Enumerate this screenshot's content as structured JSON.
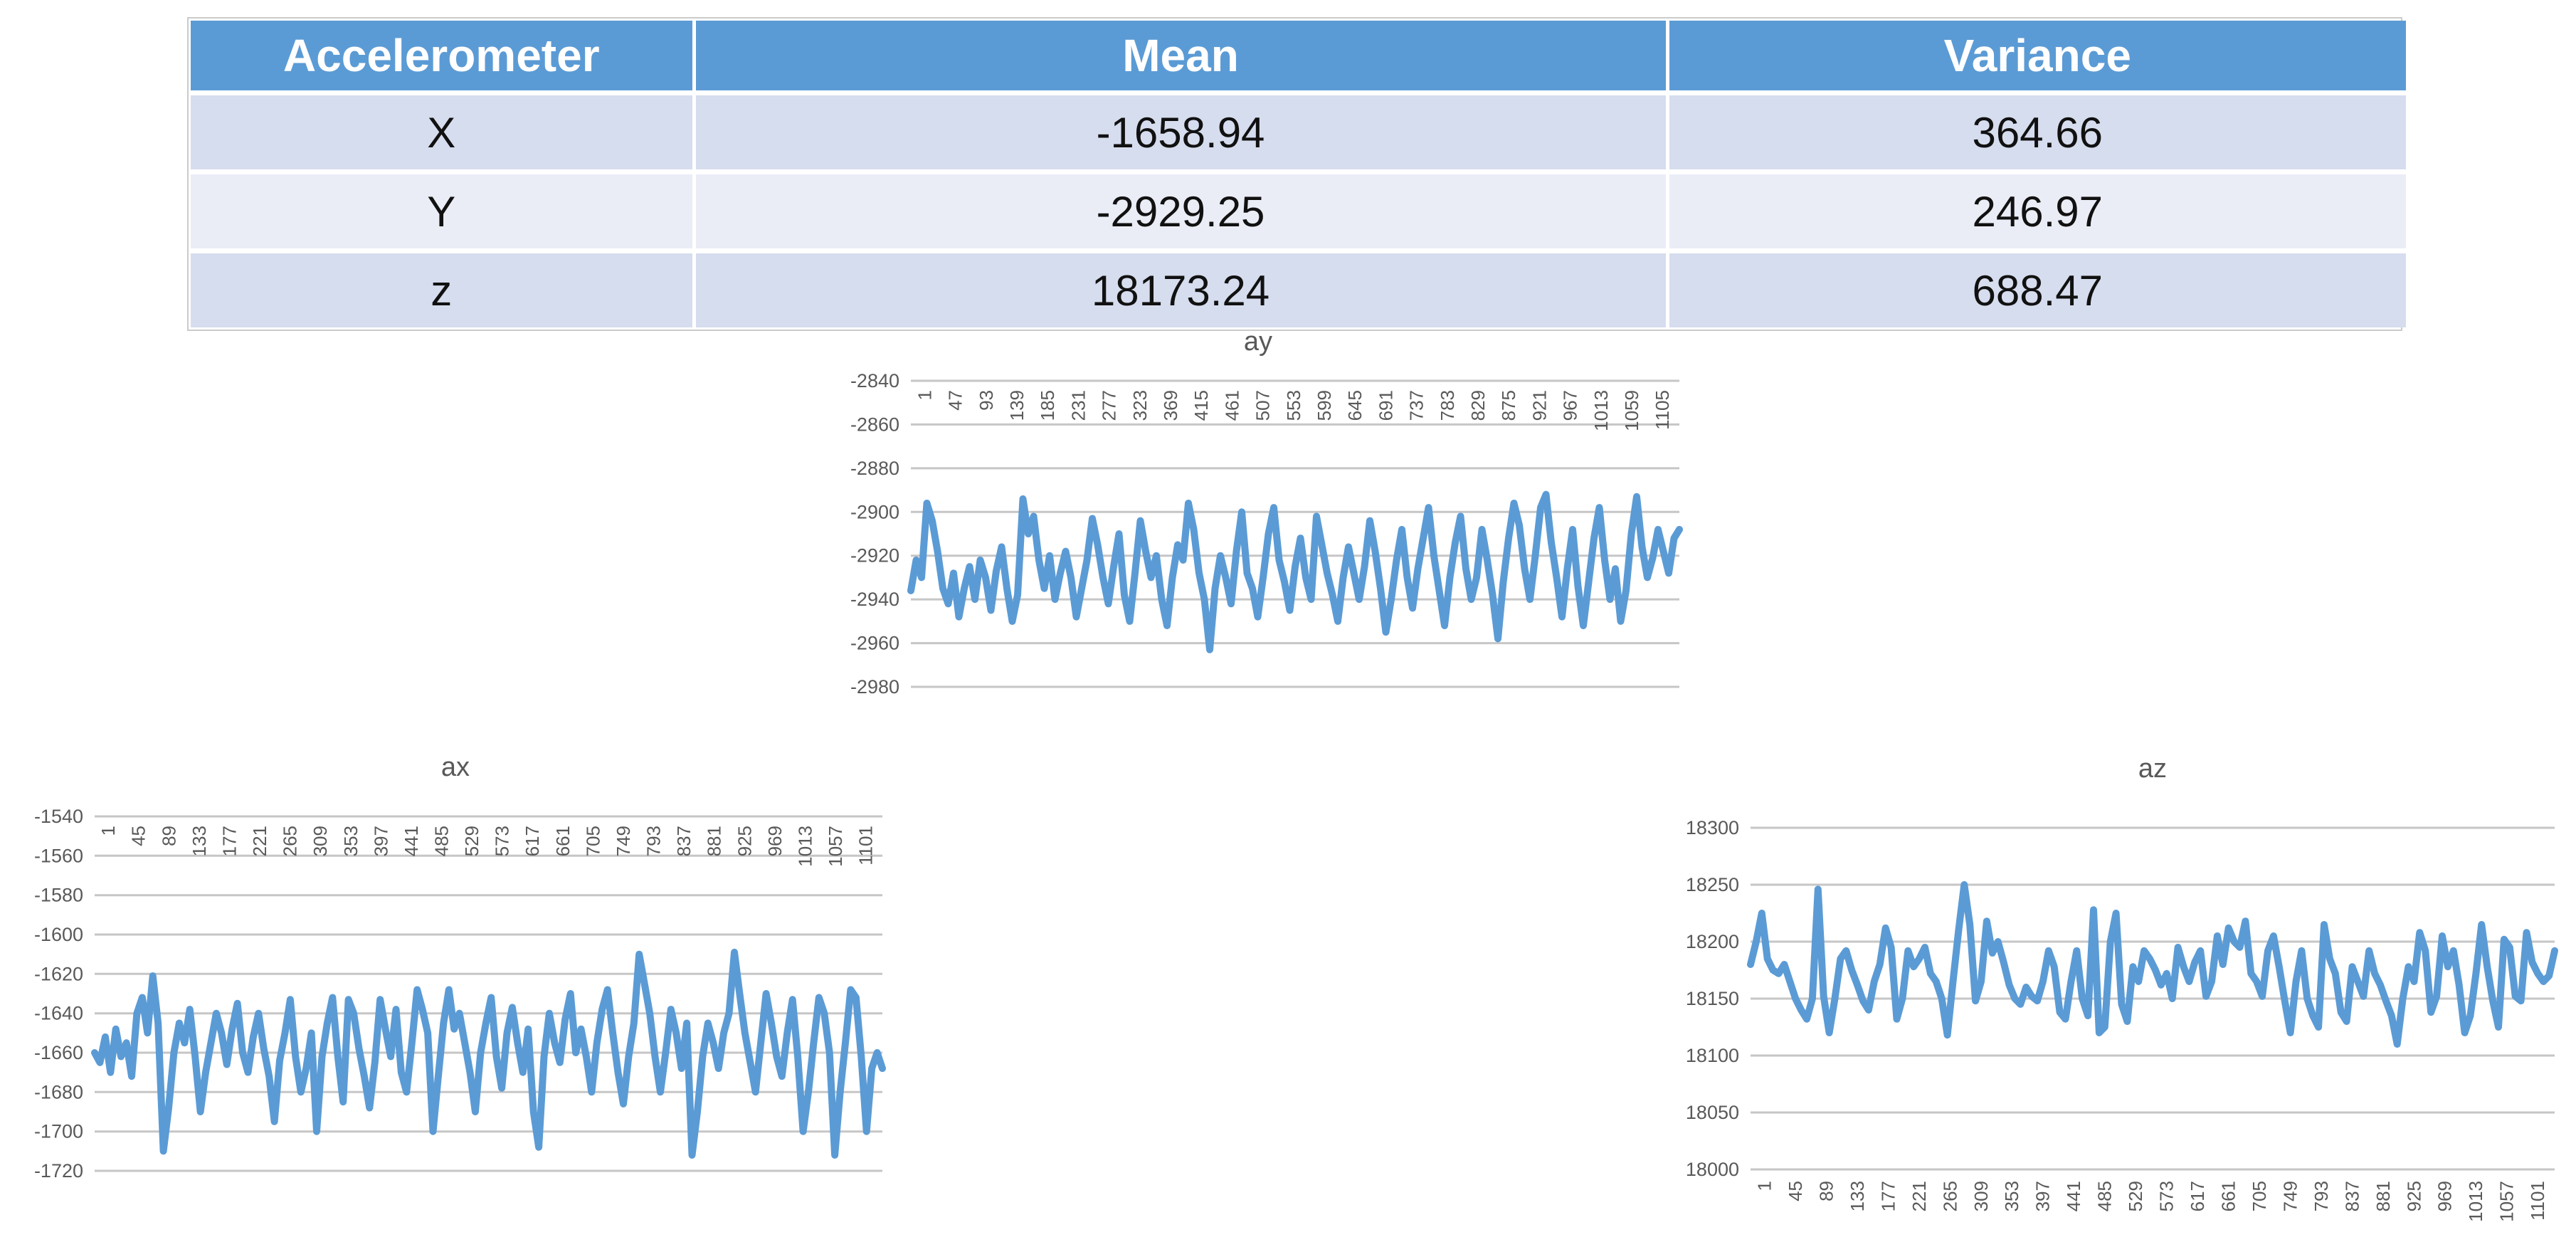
{
  "page": {
    "background": "#ffffff"
  },
  "table": {
    "headers": [
      "Accelerometer",
      "Mean",
      "Variance"
    ],
    "rows": [
      [
        "X",
        "-1658.94",
        "364.66"
      ],
      [
        "Y",
        "-2929.25",
        "246.97"
      ],
      [
        "z",
        "18173.24",
        "688.47"
      ]
    ],
    "style": {
      "header_bg": "#5b9bd5",
      "header_text": "#ffffff",
      "band_dark": "#d6ddee",
      "band_light": "#eaedf6",
      "outline": "#cbcbcb"
    }
  },
  "chart_data": [
    {
      "id": "ay",
      "type": "line",
      "title": "ay",
      "xlabel": "",
      "ylabel": "",
      "ylim": [
        -2980,
        -2840
      ],
      "y_ticks": [
        -2840,
        -2860,
        -2880,
        -2900,
        -2920,
        -2940,
        -2960,
        -2980
      ],
      "x_labels": [
        "1",
        "47",
        "93",
        "139",
        "185",
        "231",
        "277",
        "323",
        "369",
        "415",
        "461",
        "507",
        "553",
        "599",
        "645",
        "691",
        "737",
        "783",
        "829",
        "875",
        "921",
        "967",
        "1013",
        "1059",
        "1105"
      ],
      "x_labels_position": "top",
      "grid": true,
      "legend_position": "none",
      "colors": {
        "line": "#5b9bd5",
        "grid": "#c6c6c6",
        "text": "#595959"
      },
      "series": [
        {
          "name": "ay",
          "values": [
            -2936,
            -2922,
            -2930,
            -2896,
            -2904,
            -2918,
            -2935,
            -2942,
            -2928,
            -2948,
            -2935,
            -2925,
            -2940,
            -2922,
            -2930,
            -2945,
            -2927,
            -2916,
            -2935,
            -2950,
            -2938,
            -2894,
            -2910,
            -2902,
            -2922,
            -2935,
            -2920,
            -2940,
            -2928,
            -2918,
            -2930,
            -2948,
            -2935,
            -2922,
            -2903,
            -2915,
            -2930,
            -2942,
            -2925,
            -2910,
            -2938,
            -2950,
            -2928,
            -2904,
            -2918,
            -2930,
            -2920,
            -2940,
            -2952,
            -2930,
            -2915,
            -2922,
            -2896,
            -2908,
            -2928,
            -2940,
            -2963,
            -2935,
            -2920,
            -2930,
            -2942,
            -2918,
            -2900,
            -2928,
            -2935,
            -2948,
            -2930,
            -2910,
            -2898,
            -2922,
            -2932,
            -2945,
            -2925,
            -2912,
            -2930,
            -2940,
            -2902,
            -2915,
            -2928,
            -2938,
            -2950,
            -2930,
            -2916,
            -2928,
            -2940,
            -2925,
            -2904,
            -2918,
            -2935,
            -2955,
            -2940,
            -2922,
            -2908,
            -2930,
            -2944,
            -2926,
            -2912,
            -2898,
            -2920,
            -2936,
            -2952,
            -2930,
            -2914,
            -2902,
            -2926,
            -2940,
            -2930,
            -2908,
            -2922,
            -2938,
            -2958,
            -2932,
            -2912,
            -2896,
            -2906,
            -2926,
            -2940,
            -2920,
            -2898,
            -2892,
            -2914,
            -2930,
            -2948,
            -2926,
            -2908,
            -2934,
            -2952,
            -2932,
            -2912,
            -2898,
            -2922,
            -2940,
            -2926,
            -2950,
            -2936,
            -2910,
            -2893,
            -2916,
            -2930,
            -2921,
            -2908,
            -2918,
            -2928,
            -2912,
            -2908
          ]
        }
      ]
    },
    {
      "id": "ax",
      "type": "line",
      "title": "ax",
      "xlabel": "",
      "ylabel": "",
      "ylim": [
        -1720,
        -1540
      ],
      "y_ticks": [
        -1540,
        -1560,
        -1580,
        -1600,
        -1620,
        -1640,
        -1660,
        -1680,
        -1700,
        -1720
      ],
      "x_labels": [
        "1",
        "45",
        "89",
        "133",
        "177",
        "221",
        "265",
        "309",
        "353",
        "397",
        "441",
        "485",
        "529",
        "573",
        "617",
        "661",
        "705",
        "749",
        "793",
        "837",
        "881",
        "925",
        "969",
        "1013",
        "1057",
        "1101"
      ],
      "x_labels_position": "top",
      "grid": true,
      "legend_position": "none",
      "colors": {
        "line": "#5b9bd5",
        "grid": "#c6c6c6",
        "text": "#595959"
      },
      "series": [
        {
          "name": "ax",
          "values": [
            -1660,
            -1665,
            -1652,
            -1670,
            -1648,
            -1662,
            -1655,
            -1672,
            -1640,
            -1632,
            -1650,
            -1621,
            -1645,
            -1710,
            -1688,
            -1660,
            -1645,
            -1655,
            -1638,
            -1662,
            -1690,
            -1670,
            -1655,
            -1640,
            -1650,
            -1666,
            -1648,
            -1635,
            -1660,
            -1670,
            -1652,
            -1640,
            -1658,
            -1672,
            -1695,
            -1664,
            -1650,
            -1633,
            -1662,
            -1680,
            -1668,
            -1650,
            -1700,
            -1662,
            -1645,
            -1632,
            -1662,
            -1685,
            -1633,
            -1640,
            -1658,
            -1672,
            -1688,
            -1665,
            -1633,
            -1648,
            -1662,
            -1638,
            -1670,
            -1680,
            -1655,
            -1628,
            -1638,
            -1650,
            -1700,
            -1672,
            -1645,
            -1628,
            -1648,
            -1640,
            -1655,
            -1670,
            -1690,
            -1660,
            -1645,
            -1632,
            -1662,
            -1678,
            -1650,
            -1637,
            -1655,
            -1670,
            -1648,
            -1690,
            -1708,
            -1662,
            -1640,
            -1655,
            -1665,
            -1643,
            -1630,
            -1660,
            -1648,
            -1662,
            -1680,
            -1655,
            -1638,
            -1628,
            -1650,
            -1670,
            -1686,
            -1662,
            -1645,
            -1610,
            -1625,
            -1640,
            -1662,
            -1680,
            -1660,
            -1638,
            -1650,
            -1668,
            -1645,
            -1712,
            -1690,
            -1662,
            -1645,
            -1655,
            -1668,
            -1650,
            -1640,
            -1609,
            -1630,
            -1650,
            -1665,
            -1680,
            -1655,
            -1630,
            -1645,
            -1662,
            -1672,
            -1650,
            -1633,
            -1662,
            -1700,
            -1680,
            -1655,
            -1632,
            -1640,
            -1660,
            -1712,
            -1680,
            -1655,
            -1628,
            -1632,
            -1662,
            -1700,
            -1668,
            -1660,
            -1668
          ]
        }
      ]
    },
    {
      "id": "az",
      "type": "line",
      "title": "az",
      "xlabel": "",
      "ylabel": "",
      "ylim": [
        18000,
        18300
      ],
      "y_ticks": [
        18300,
        18250,
        18200,
        18150,
        18100,
        18050,
        18000
      ],
      "x_labels": [
        "1",
        "45",
        "89",
        "133",
        "177",
        "221",
        "265",
        "309",
        "353",
        "397",
        "441",
        "485",
        "529",
        "573",
        "617",
        "661",
        "705",
        "749",
        "793",
        "837",
        "881",
        "925",
        "969",
        "1013",
        "1057",
        "1101"
      ],
      "x_labels_position": "bottom",
      "grid": true,
      "legend_position": "none",
      "colors": {
        "line": "#5b9bd5",
        "grid": "#c6c6c6",
        "text": "#595959"
      },
      "series": [
        {
          "name": "az",
          "values": [
            18180,
            18200,
            18225,
            18185,
            18175,
            18172,
            18180,
            18165,
            18150,
            18140,
            18132,
            18150,
            18246,
            18152,
            18120,
            18150,
            18185,
            18192,
            18175,
            18162,
            18148,
            18140,
            18165,
            18180,
            18212,
            18195,
            18132,
            18150,
            18192,
            18178,
            18185,
            18195,
            18172,
            18165,
            18150,
            18118,
            18165,
            18210,
            18250,
            18215,
            18148,
            18165,
            18218,
            18190,
            18200,
            18182,
            18162,
            18150,
            18145,
            18160,
            18152,
            18148,
            18165,
            18192,
            18178,
            18138,
            18132,
            18165,
            18192,
            18150,
            18135,
            18228,
            18120,
            18125,
            18200,
            18225,
            18145,
            18130,
            18178,
            18165,
            18192,
            18185,
            18175,
            18162,
            18172,
            18150,
            18195,
            18178,
            18165,
            18182,
            18192,
            18152,
            18165,
            18205,
            18180,
            18212,
            18200,
            18195,
            18218,
            18172,
            18165,
            18152,
            18192,
            18205,
            18178,
            18148,
            18120,
            18165,
            18192,
            18150,
            18135,
            18125,
            18215,
            18185,
            18172,
            18138,
            18130,
            18178,
            18165,
            18152,
            18192,
            18172,
            18162,
            18148,
            18135,
            18110,
            18150,
            18178,
            18165,
            18208,
            18192,
            18138,
            18152,
            18205,
            18178,
            18192,
            18162,
            18120,
            18135,
            18172,
            18215,
            18178,
            18148,
            18125,
            18202,
            18195,
            18152,
            18148,
            18208,
            18182,
            18172,
            18165,
            18170,
            18192
          ]
        }
      ]
    }
  ]
}
